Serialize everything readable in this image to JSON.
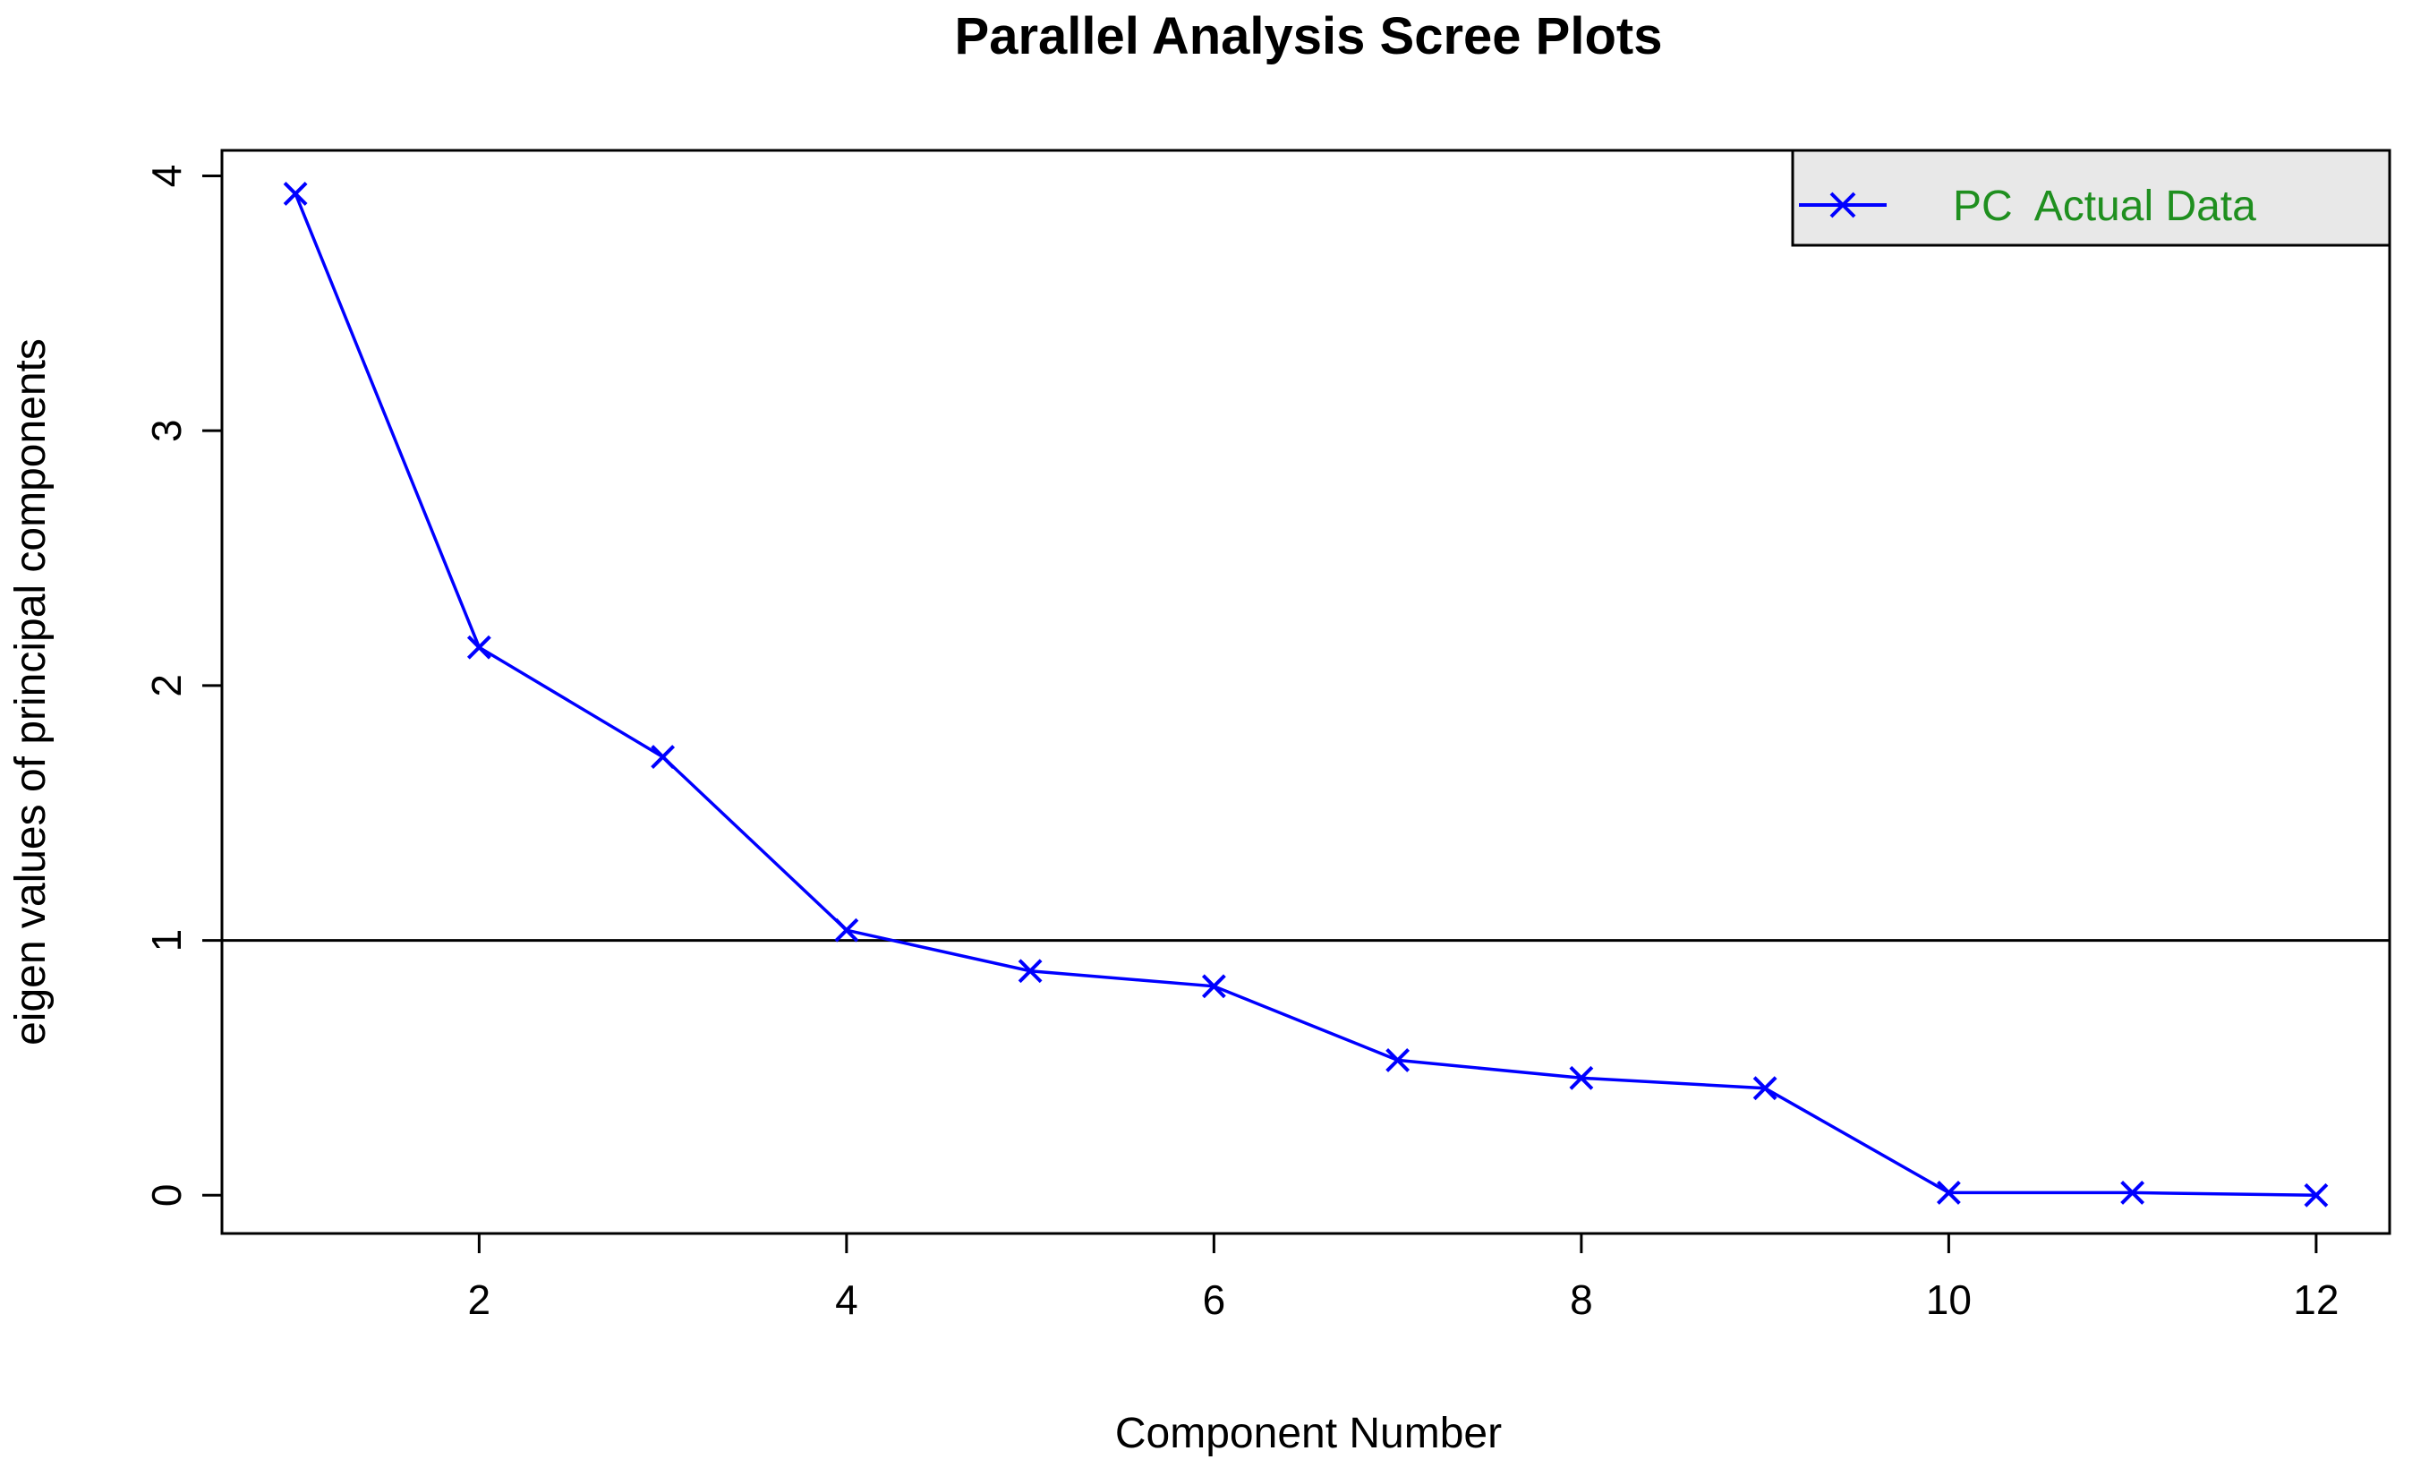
{
  "chart_data": {
    "type": "line",
    "title": "Parallel Analysis Scree Plots",
    "xlabel": "Component Number",
    "ylabel": "eigen values of principal components",
    "xlim": [
      0.6,
      12.4
    ],
    "ylim": [
      -0.15,
      4.1
    ],
    "x_ticks": [
      2,
      4,
      6,
      8,
      10,
      12
    ],
    "y_ticks": [
      0,
      1,
      2,
      3,
      4
    ],
    "grid": false,
    "reference_line": {
      "y": 1,
      "color": "#000000"
    },
    "legend": {
      "position": "top-right",
      "entries": [
        {
          "label": "PC  Actual Data",
          "color": "#0000ff",
          "text_color": "#1f8f1f",
          "marker": "x"
        }
      ]
    },
    "series": [
      {
        "name": "PC  Actual Data",
        "color": "#0000ff",
        "marker": "x",
        "x": [
          1,
          2,
          3,
          4,
          5,
          6,
          7,
          8,
          9,
          10,
          11,
          12
        ],
        "y": [
          3.93,
          2.15,
          1.72,
          1.04,
          0.88,
          0.82,
          0.53,
          0.46,
          0.42,
          0.01,
          0.01,
          0.0
        ]
      }
    ]
  }
}
